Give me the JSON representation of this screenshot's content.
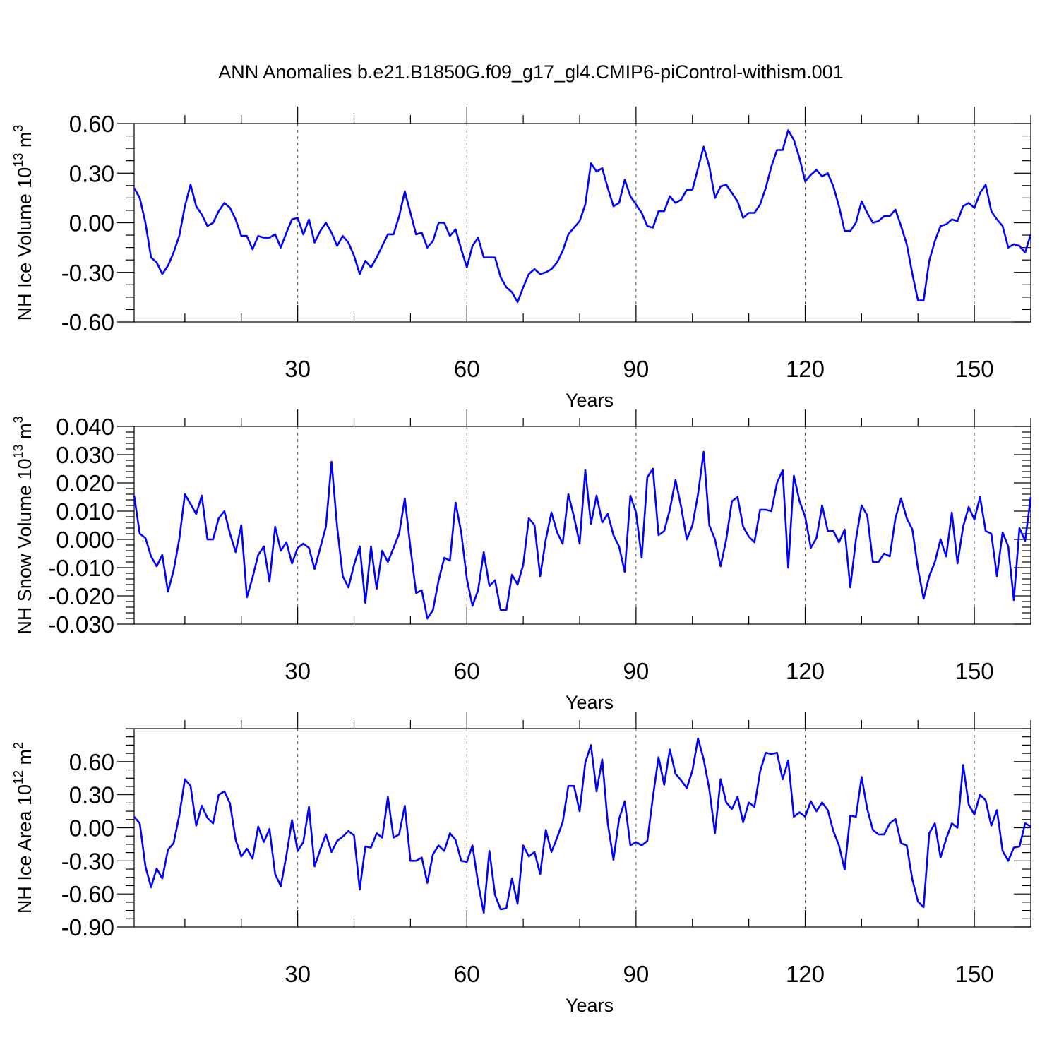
{
  "title": "ANN Anomalies b.e21.B1850G.f09_g17_gl4.CMIP6-piControl-withism.001",
  "colors": {
    "series": "#0000ff",
    "grid": "#555555",
    "axis": "#000000"
  },
  "chart_data": [
    {
      "type": "line",
      "ylabel_main": "NH Ice Volume 10",
      "ylabel_sup": "13",
      "ylabel_unit": " m",
      "ylabel_unit_sup": "3",
      "xlabel": "Years",
      "xlim": [
        1,
        160
      ],
      "ylim": [
        -0.6,
        0.6
      ],
      "xticks": [
        30,
        60,
        90,
        120,
        150
      ],
      "xtick_labels": [
        "30",
        "60",
        "90",
        "120",
        "150"
      ],
      "yticks": [
        -0.6,
        -0.3,
        0.0,
        0.3,
        0.6
      ],
      "ytick_labels": [
        "-0.60",
        "-0.30",
        "0.00",
        "0.30",
        "0.60"
      ],
      "yminor_step": 0.075,
      "grid": "vertical dashed at major x ticks",
      "x_start": 1,
      "values": [
        0.21,
        0.15,
        0.0,
        -0.21,
        -0.24,
        -0.31,
        -0.26,
        -0.18,
        -0.08,
        0.1,
        0.23,
        0.1,
        0.05,
        -0.02,
        0.0,
        0.07,
        0.12,
        0.09,
        0.02,
        -0.08,
        -0.08,
        -0.16,
        -0.08,
        -0.09,
        -0.09,
        -0.07,
        -0.15,
        -0.06,
        0.02,
        0.03,
        -0.07,
        0.02,
        -0.12,
        -0.05,
        0.0,
        -0.06,
        -0.14,
        -0.08,
        -0.12,
        -0.2,
        -0.31,
        -0.23,
        -0.27,
        -0.21,
        -0.14,
        -0.07,
        -0.07,
        0.04,
        0.19,
        0.06,
        -0.07,
        -0.06,
        -0.15,
        -0.11,
        0.0,
        0.0,
        -0.08,
        -0.04,
        -0.16,
        -0.27,
        -0.14,
        -0.09,
        -0.21,
        -0.21,
        -0.21,
        -0.33,
        -0.39,
        -0.42,
        -0.48,
        -0.39,
        -0.31,
        -0.28,
        -0.31,
        -0.3,
        -0.28,
        -0.24,
        -0.17,
        -0.07,
        -0.03,
        0.01,
        0.11,
        0.36,
        0.31,
        0.33,
        0.21,
        0.1,
        0.12,
        0.26,
        0.16,
        0.11,
        0.06,
        -0.02,
        -0.03,
        0.07,
        0.07,
        0.16,
        0.12,
        0.14,
        0.2,
        0.2,
        0.33,
        0.46,
        0.34,
        0.15,
        0.22,
        0.23,
        0.18,
        0.13,
        0.03,
        0.06,
        0.06,
        0.11,
        0.21,
        0.34,
        0.44,
        0.44,
        0.56,
        0.5,
        0.39,
        0.25,
        0.29,
        0.32,
        0.28,
        0.3,
        0.22,
        0.1,
        -0.05,
        -0.05,
        0.0,
        0.13,
        0.06,
        0.0,
        0.01,
        0.04,
        0.04,
        0.08,
        -0.02,
        -0.13,
        -0.31,
        -0.47,
        -0.47,
        -0.23,
        -0.11,
        -0.02,
        -0.01,
        0.02,
        0.01,
        0.1,
        0.12,
        0.09,
        0.18,
        0.23,
        0.07,
        0.02,
        -0.02,
        -0.15,
        -0.13,
        -0.14,
        -0.18,
        -0.07
      ]
    },
    {
      "type": "line",
      "ylabel_main": "NH Snow Volume 10",
      "ylabel_sup": "13",
      "ylabel_unit": " m",
      "ylabel_unit_sup": "3",
      "xlabel": "Years",
      "xlim": [
        1,
        160
      ],
      "ylim": [
        -0.03,
        0.04
      ],
      "xticks": [
        30,
        60,
        90,
        120,
        150
      ],
      "xtick_labels": [
        "30",
        "60",
        "90",
        "120",
        "150"
      ],
      "yticks": [
        -0.03,
        -0.02,
        -0.01,
        0.0,
        0.01,
        0.02,
        0.03,
        0.04
      ],
      "ytick_labels": [
        "-0.030",
        "-0.020",
        "-0.010",
        "0.000",
        "0.010",
        "0.020",
        "0.030",
        "0.040"
      ],
      "yminor_step": 0.002,
      "grid": "vertical dashed at major x ticks",
      "x_start": 1,
      "values": [
        0.0155,
        0.002,
        0.0005,
        -0.006,
        -0.0095,
        -0.0055,
        -0.0185,
        -0.011,
        0.0,
        0.016,
        0.0125,
        0.009,
        0.0155,
        0.0,
        0.0,
        0.0075,
        0.01,
        0.002,
        -0.0045,
        0.005,
        -0.0205,
        -0.0135,
        -0.0055,
        -0.0025,
        -0.015,
        0.0045,
        -0.004,
        -0.001,
        -0.0085,
        -0.003,
        -0.0015,
        -0.003,
        -0.0105,
        -0.003,
        0.0045,
        0.0275,
        0.0045,
        -0.013,
        -0.017,
        -0.009,
        -0.0025,
        -0.0225,
        -0.0025,
        -0.0175,
        -0.004,
        -0.008,
        -0.003,
        0.002,
        0.0145,
        -0.003,
        -0.019,
        -0.018,
        -0.028,
        -0.025,
        -0.0145,
        -0.0065,
        -0.0075,
        0.013,
        0.0025,
        -0.014,
        -0.0235,
        -0.018,
        -0.0045,
        -0.0165,
        -0.0145,
        -0.025,
        -0.025,
        -0.0125,
        -0.016,
        -0.009,
        0.0075,
        0.005,
        -0.013,
        0.0,
        0.0095,
        0.0025,
        -0.0015,
        0.016,
        0.008,
        -0.0015,
        0.0245,
        0.0055,
        0.0155,
        0.006,
        0.009,
        0.0015,
        -0.0025,
        -0.0115,
        0.0155,
        0.0095,
        -0.0065,
        0.022,
        0.025,
        0.0015,
        0.003,
        0.0105,
        0.021,
        0.0115,
        0.0,
        0.005,
        0.016,
        0.031,
        0.005,
        0.0,
        -0.0095,
        0.0,
        0.0135,
        0.015,
        0.0045,
        0.001,
        -0.001,
        0.0105,
        0.0105,
        0.01,
        0.02,
        0.0245,
        -0.01,
        0.0225,
        0.0135,
        0.008,
        -0.003,
        0.0005,
        0.012,
        0.003,
        0.003,
        -0.001,
        0.0035,
        -0.017,
        0.0,
        0.012,
        0.0085,
        -0.008,
        -0.008,
        -0.005,
        -0.006,
        0.0075,
        0.0145,
        0.0075,
        0.0035,
        -0.0105,
        -0.021,
        -0.013,
        -0.008,
        0.0,
        -0.006,
        0.0095,
        -0.0085,
        0.0045,
        0.0115,
        0.007,
        0.015,
        0.003,
        0.002,
        -0.013,
        0.0025,
        -0.0025,
        -0.0215,
        0.004,
        -0.0005,
        0.015
      ]
    },
    {
      "type": "line",
      "ylabel_main": "NH Ice Area 10",
      "ylabel_sup": "12",
      "ylabel_unit": " m",
      "ylabel_unit_sup": "2",
      "xlabel": "Years",
      "xlim": [
        1,
        160
      ],
      "ylim": [
        -0.9,
        0.9
      ],
      "xticks": [
        30,
        60,
        90,
        120,
        150
      ],
      "xtick_labels": [
        "30",
        "60",
        "90",
        "120",
        "150"
      ],
      "yticks": [
        -0.9,
        -0.6,
        -0.3,
        0.0,
        0.3,
        0.6
      ],
      "ytick_labels": [
        "-0.90",
        "-0.60",
        "-0.30",
        "0.00",
        "0.30",
        "0.60"
      ],
      "yminor_step": 0.075,
      "grid": "vertical dashed at major x ticks",
      "x_start": 1,
      "values": [
        0.1,
        0.04,
        -0.35,
        -0.54,
        -0.37,
        -0.46,
        -0.2,
        -0.14,
        0.11,
        0.44,
        0.38,
        0.02,
        0.2,
        0.09,
        0.04,
        0.3,
        0.33,
        0.22,
        -0.11,
        -0.26,
        -0.19,
        -0.28,
        0.01,
        -0.13,
        -0.01,
        -0.42,
        -0.53,
        -0.25,
        0.07,
        -0.21,
        -0.13,
        0.19,
        -0.35,
        -0.2,
        -0.06,
        -0.22,
        -0.12,
        -0.08,
        -0.03,
        -0.07,
        -0.56,
        -0.17,
        -0.18,
        -0.05,
        -0.09,
        0.28,
        -0.09,
        -0.06,
        0.2,
        -0.3,
        -0.3,
        -0.27,
        -0.5,
        -0.24,
        -0.16,
        -0.21,
        -0.05,
        -0.11,
        -0.3,
        -0.31,
        -0.16,
        -0.5,
        -0.77,
        -0.21,
        -0.61,
        -0.74,
        -0.73,
        -0.46,
        -0.69,
        -0.16,
        -0.26,
        -0.22,
        -0.42,
        -0.02,
        -0.22,
        -0.09,
        0.05,
        0.38,
        0.38,
        0.15,
        0.59,
        0.75,
        0.33,
        0.62,
        0.04,
        -0.29,
        0.08,
        0.24,
        -0.16,
        -0.13,
        -0.16,
        -0.12,
        0.28,
        0.64,
        0.39,
        0.71,
        0.49,
        0.43,
        0.36,
        0.52,
        0.81,
        0.62,
        0.35,
        -0.05,
        0.44,
        0.23,
        0.17,
        0.28,
        0.05,
        0.23,
        0.19,
        0.51,
        0.68,
        0.67,
        0.68,
        0.44,
        0.61,
        0.1,
        0.14,
        0.1,
        0.24,
        0.15,
        0.23,
        0.16,
        -0.03,
        -0.16,
        -0.38,
        0.11,
        0.1,
        0.46,
        0.17,
        -0.02,
        -0.06,
        -0.06,
        0.04,
        0.08,
        -0.14,
        -0.16,
        -0.47,
        -0.67,
        -0.72,
        -0.05,
        0.04,
        -0.27,
        -0.1,
        0.04,
        0.0,
        0.57,
        0.21,
        0.12,
        0.3,
        0.25,
        0.02,
        0.16,
        -0.21,
        -0.3,
        -0.18,
        -0.17,
        0.04,
        0.01
      ]
    }
  ]
}
